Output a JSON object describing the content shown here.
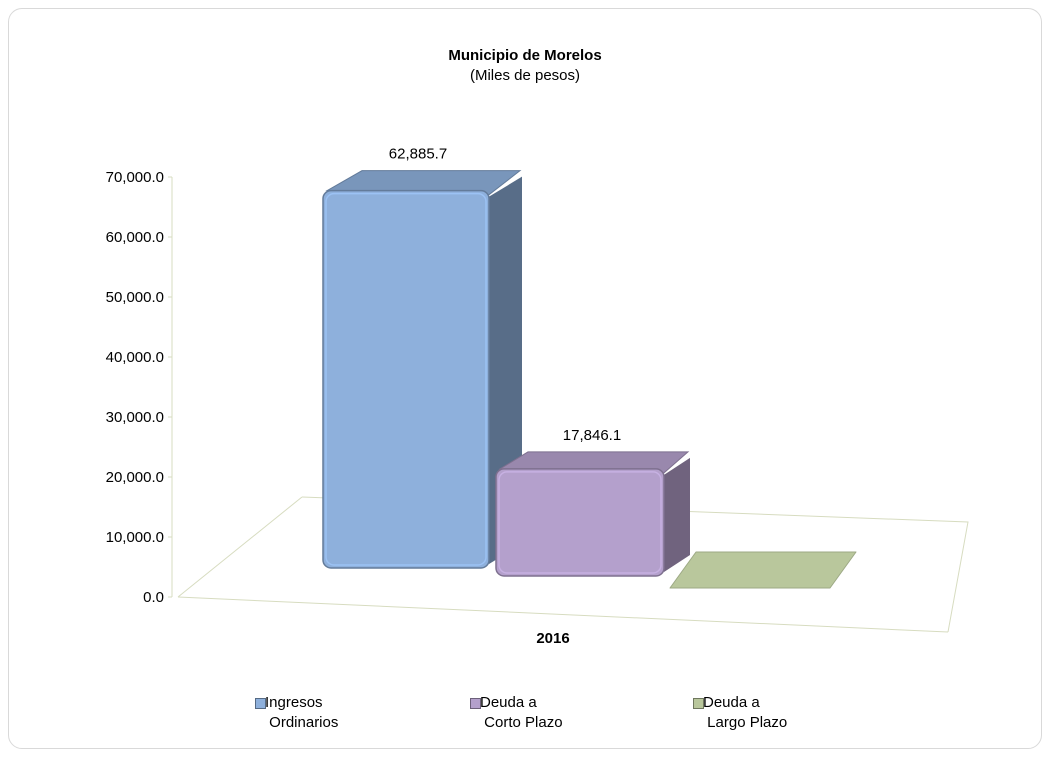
{
  "chart_data": {
    "type": "bar",
    "title": "Municipio de Morelos",
    "subtitle": "(Miles de pesos)",
    "categories": [
      "2016"
    ],
    "series": [
      {
        "name": "Ingresos Ordinarios",
        "legend_line1": "Ingresos",
        "legend_line2": "Ordinarios",
        "values": [
          62885.7
        ],
        "label": "62,885.7",
        "color": "#8eb0dc"
      },
      {
        "name": "Deuda a Corto Plazo",
        "legend_line1": "Deuda a",
        "legend_line2": "Corto Plazo",
        "values": [
          17846.1
        ],
        "label": "17,846.1",
        "color": "#b4a0cc"
      },
      {
        "name": "Deuda a Largo Plazo",
        "legend_line1": "Deuda a",
        "legend_line2": "Largo Plazo",
        "values": [
          0
        ],
        "label": "",
        "color": "#b9c79c"
      }
    ],
    "ylim": [
      0,
      70000
    ],
    "yticks": [
      "0.0",
      "10,000.0",
      "20,000.0",
      "30,000.0",
      "40,000.0",
      "50,000.0",
      "60,000.0",
      "70,000.0"
    ],
    "xlabel": "",
    "ylabel": "",
    "legend_position": "bottom",
    "grid": false,
    "style": "3d-column"
  }
}
